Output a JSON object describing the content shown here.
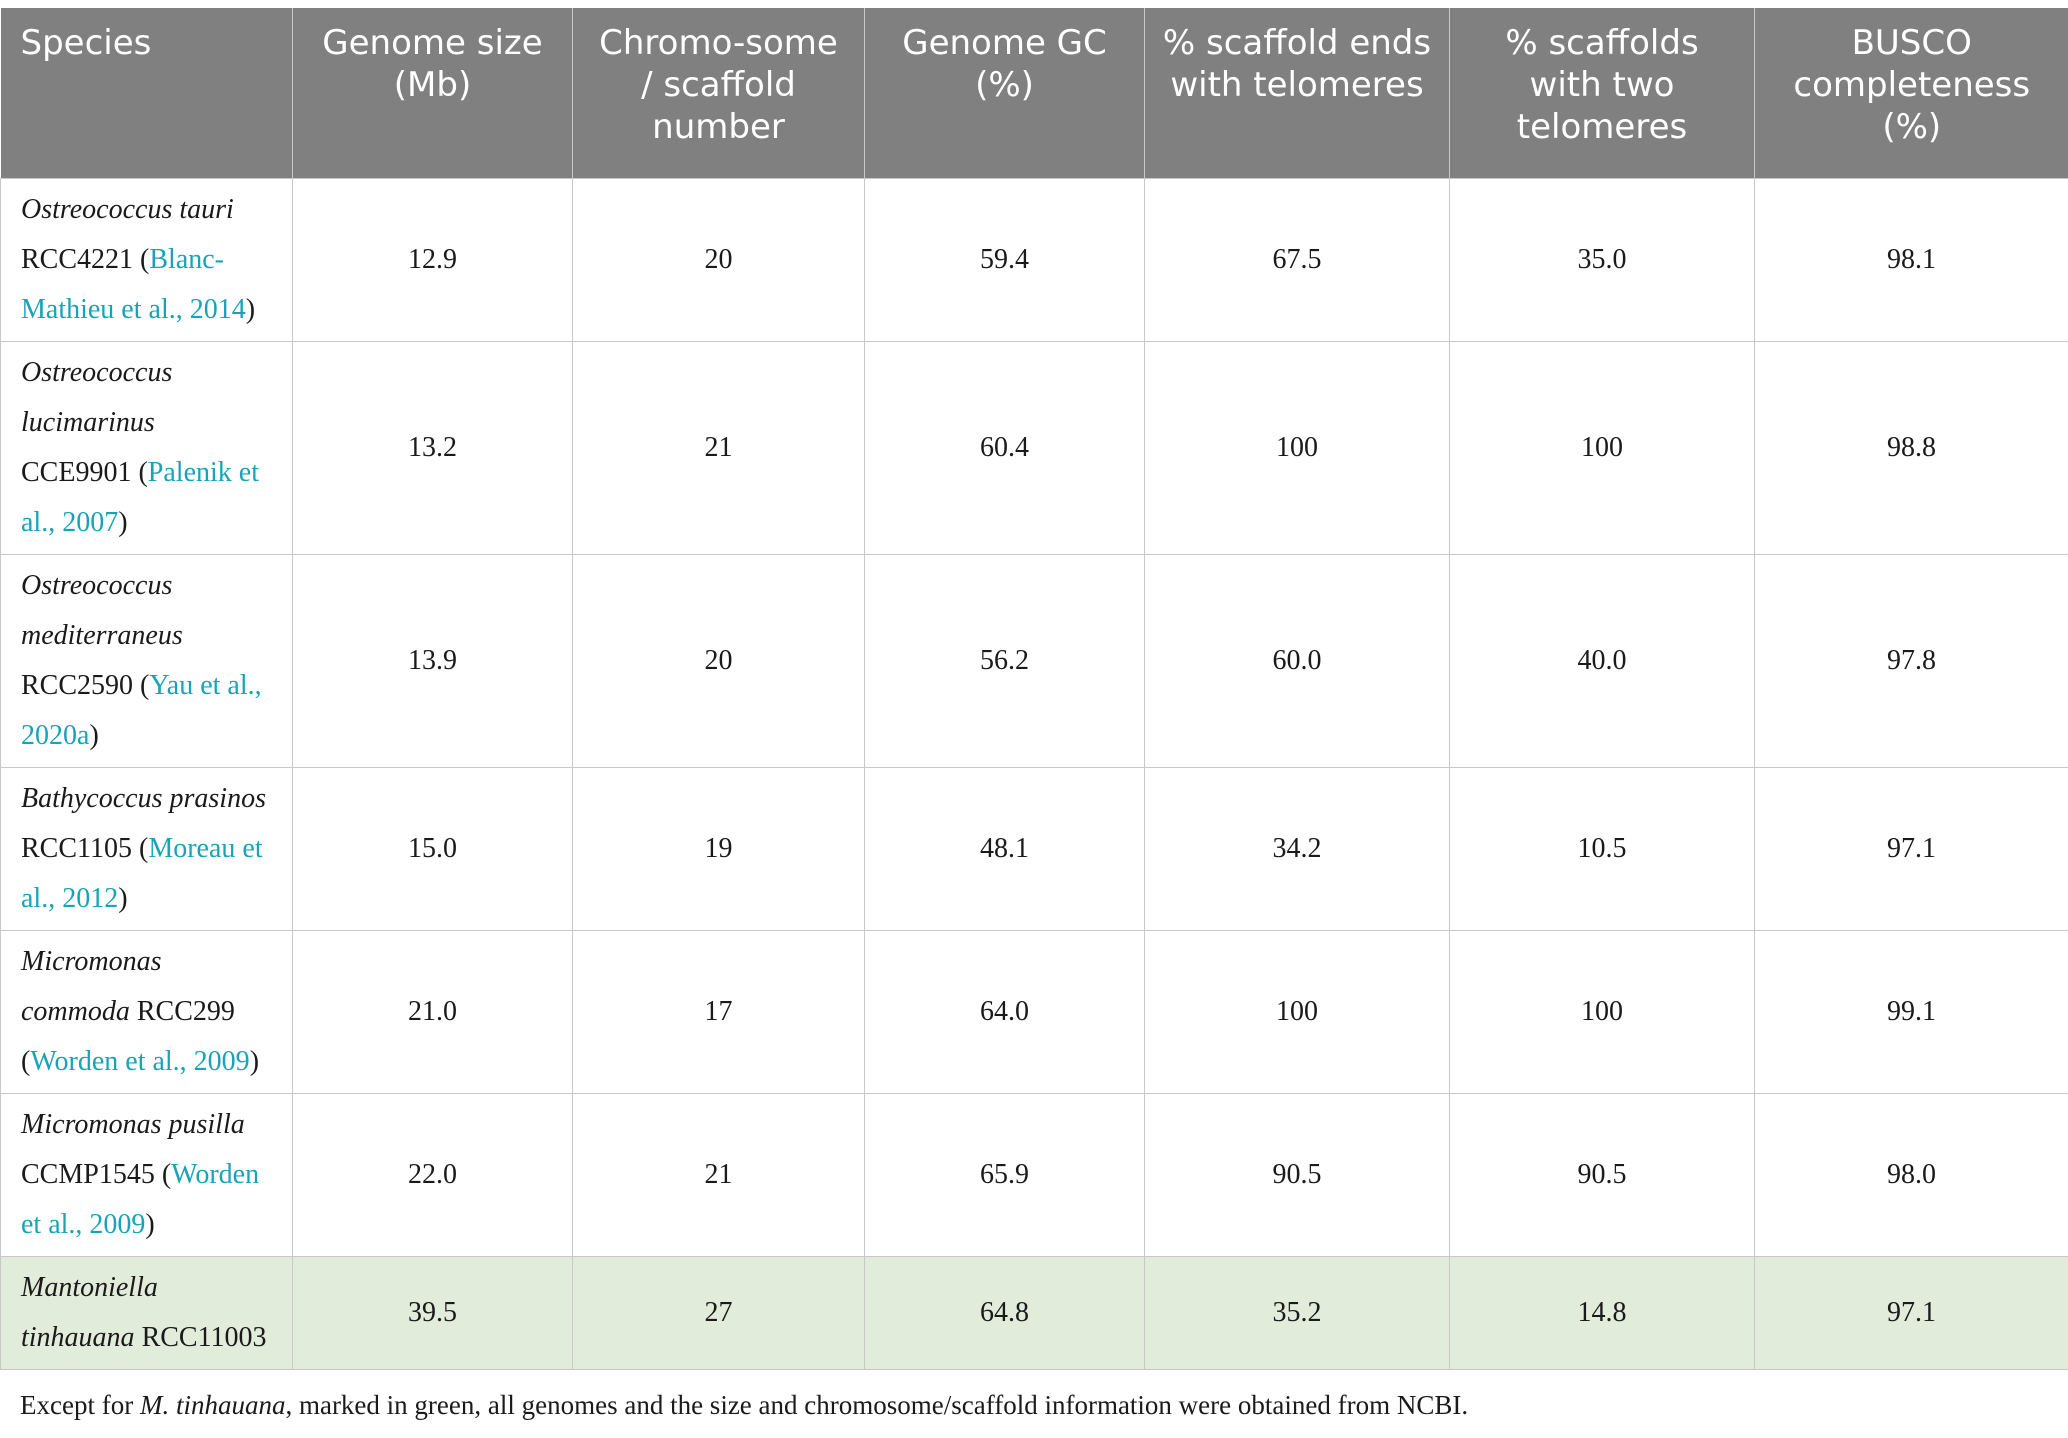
{
  "table": {
    "headers": [
      "Species",
      "Genome size (Mb)",
      "Chromo-some / scaffold number",
      "Genome GC (%)",
      "% scaffold ends with telomeres",
      "% scaffolds with two telomeres",
      "BUSCO completeness (%)"
    ],
    "rows": [
      {
        "species": "Ostreococcus tauri",
        "strain": "RCC4221",
        "ref": "Blanc-Mathieu et al., 2014",
        "values": [
          "12.9",
          "20",
          "59.4",
          "67.5",
          "35.0",
          "98.1"
        ]
      },
      {
        "species": "Ostreococcus lucimarinus",
        "strain": "CCE9901",
        "ref": "Palenik et al., 2007",
        "values": [
          "13.2",
          "21",
          "60.4",
          "100",
          "100",
          "98.8"
        ]
      },
      {
        "species": "Ostreococcus mediterraneus",
        "strain": "RCC2590",
        "ref": "Yau et al., 2020a",
        "values": [
          "13.9",
          "20",
          "56.2",
          "60.0",
          "40.0",
          "97.8"
        ]
      },
      {
        "species": "Bathycoccus prasinos",
        "strain": "RCC1105",
        "ref": "Moreau et al., 2012",
        "values": [
          "15.0",
          "19",
          "48.1",
          "34.2",
          "10.5",
          "97.1"
        ]
      },
      {
        "species": "Micromonas commoda",
        "strain": "RCC299",
        "ref": "Worden et al., 2009",
        "values": [
          "21.0",
          "17",
          "64.0",
          "100",
          "100",
          "99.1"
        ]
      },
      {
        "species": "Micromonas pusilla",
        "strain": "CCMP1545",
        "ref": "Worden et al., 2009",
        "values": [
          "22.0",
          "21",
          "65.9",
          "90.5",
          "90.5",
          "98.0"
        ]
      },
      {
        "species": "Mantoniella tinhauana",
        "strain": "RCC11003",
        "ref": "",
        "values": [
          "39.5",
          "27",
          "64.8",
          "35.2",
          "14.8",
          "97.1"
        ]
      }
    ]
  },
  "footnote": {
    "prefix": "Except for ",
    "species": "M. tinhauana",
    "suffix": ", marked in green, all genomes and the size and chromosome/scaffold information were obtained from NCBI."
  },
  "colors": {
    "header_bg": "#808080",
    "highlight_row": "#e2ecda",
    "reference_link": "#1aa3b8"
  }
}
